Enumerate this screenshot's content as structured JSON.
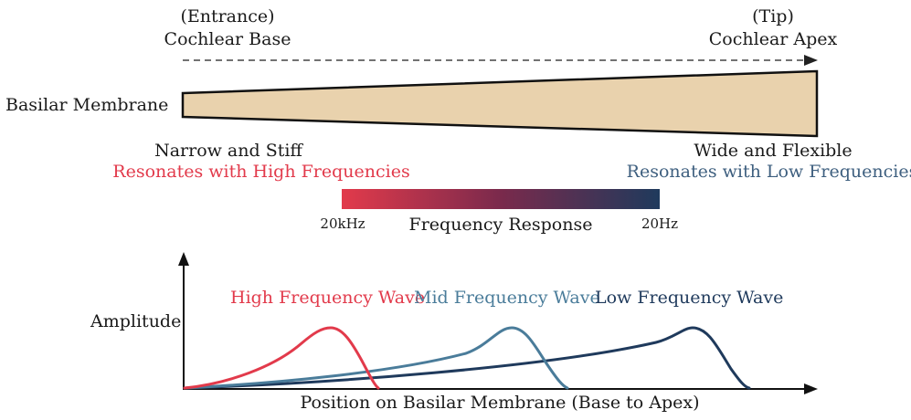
{
  "base": {
    "sub": "(Entrance)",
    "title": "Cochlear Base"
  },
  "apex": {
    "sub": "(Tip)",
    "title": "Cochlear Apex"
  },
  "membrane_label": "Basilar Membrane",
  "left_desc": {
    "line1": "Narrow and Stiff",
    "line2": "Resonates with High Frequencies"
  },
  "right_desc": {
    "line1": "Wide and Flexible",
    "line2": "Resonates with Low Frequencies"
  },
  "frequency_bar": {
    "label": "Frequency Response",
    "left_tick": "20kHz",
    "right_tick": "20Hz"
  },
  "plot": {
    "ylabel": "Amplitude",
    "xlabel": "Position on Basilar Membrane (Base to Apex)",
    "waves": [
      {
        "label": "High Frequency Wave",
        "color": "#e23a4b"
      },
      {
        "label": "Mid Frequency Wave",
        "color": "#4a7c9a"
      },
      {
        "label": "Low Frequency Wave",
        "color": "#1f3a5c"
      }
    ]
  },
  "colors": {
    "membrane_fill": "#e9d2ad",
    "high": "#e23a4b",
    "mid": "#4a7c9a",
    "low": "#1f3a5c"
  }
}
